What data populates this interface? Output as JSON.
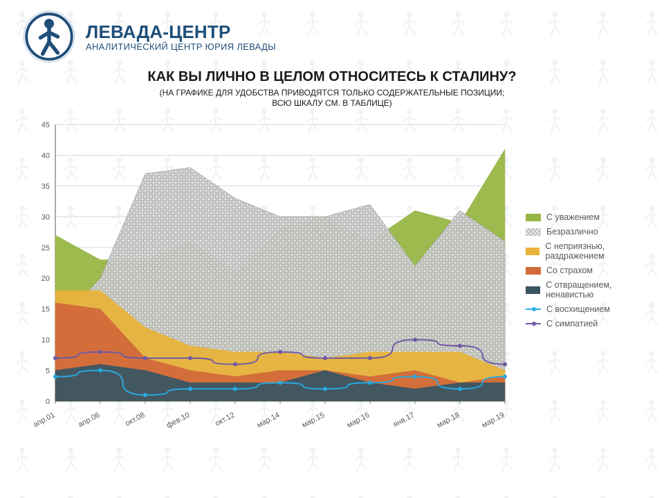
{
  "brand": {
    "name": "ЛЕВАДА-ЦЕНТР",
    "sub": "АНАЛИТИЧЕСКИЙ ЦЕНТР ЮРИЯ ЛЕВАДЫ",
    "color": "#1f4e79"
  },
  "chart": {
    "type": "area-line-combo",
    "title": "КАК ВЫ ЛИЧНО В ЦЕЛОМ ОТНОСИТЕСЬ К СТАЛИНУ?",
    "subtitle1": "(НА ГРАФИКЕ ДЛЯ УДОБСТВА ПРИВОДЯТСЯ ТОЛЬКО СОДЕРЖАТЕЛЬНЫЕ ПОЗИЦИИ;",
    "subtitle2": "ВСЮ ШКАЛУ СМ. В ТАБЛИЦЕ)",
    "categories": [
      "апр.01",
      "апр.06",
      "окт.08",
      "фев.10",
      "окт.12",
      "мар.14",
      "мар.15",
      "мар.16",
      "янв.17",
      "мар.18",
      "мар.19"
    ],
    "ylim": [
      0,
      45
    ],
    "ytick_step": 5,
    "grid_color": "#d9d9d9",
    "axis_color": "#808080",
    "background_color": "#ffffff",
    "title_fontsize": 20,
    "subtitle_fontsize": 12,
    "label_fontsize": 11,
    "tick_fontsize": 11,
    "line_width": 2,
    "marker_radius": 3,
    "area_series": [
      {
        "name": "С отвращением, ненавистью",
        "color": "#3b5563",
        "values": [
          5,
          6,
          5,
          3,
          3,
          3,
          5,
          3,
          2,
          3,
          3
        ]
      },
      {
        "name": "Со страхом",
        "color": "#d26a3a",
        "values": [
          16,
          15,
          7,
          5,
          4,
          5,
          5,
          4,
          5,
          3,
          4
        ]
      },
      {
        "name": "С неприязнью, раздражением",
        "color": "#e8b33b",
        "values": [
          18,
          18,
          12,
          9,
          8,
          8,
          7,
          8,
          8,
          8,
          5
        ]
      },
      {
        "name": "Безразлично",
        "color": "pattern:#8a8a8a",
        "values": [
          12,
          20,
          37,
          38,
          33,
          30,
          30,
          32,
          22,
          31,
          26
        ]
      },
      {
        "name": "С уважением",
        "color": "#98b646",
        "values": [
          27,
          23,
          23,
          26,
          21,
          28,
          30,
          26,
          31,
          29,
          41
        ]
      }
    ],
    "line_series": [
      {
        "name": "С восхищением",
        "color": "#2aa9df",
        "values": [
          4,
          5,
          1,
          2,
          2,
          3,
          2,
          3,
          4,
          2,
          4
        ]
      },
      {
        "name": "С симпатией",
        "color": "#6f5aa3",
        "values": [
          7,
          8,
          7,
          7,
          6,
          8,
          7,
          7,
          10,
          9,
          6
        ]
      }
    ],
    "legend_order": [
      "С уважением",
      "Безразлично",
      "С неприязнью, раздражением",
      "Со страхом",
      "С отвращением, ненавистью",
      "С восхищением",
      "С симпатией"
    ]
  }
}
